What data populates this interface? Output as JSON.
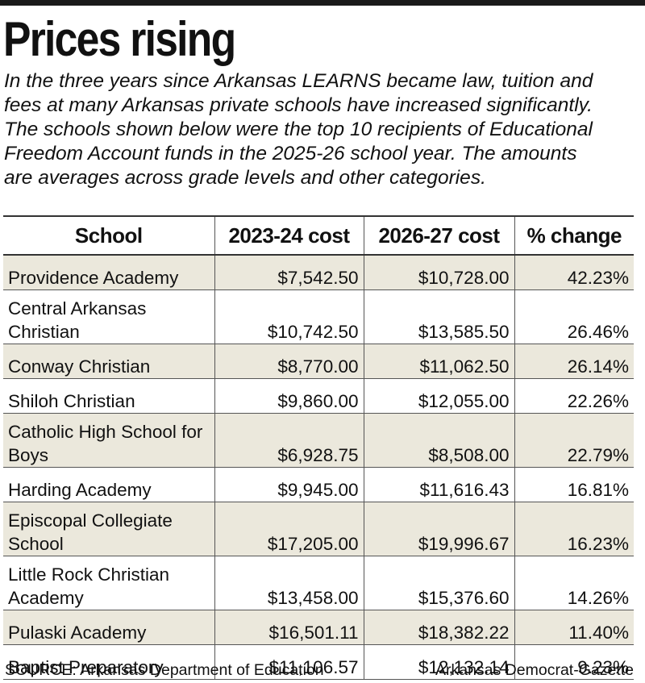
{
  "title": "Prices rising",
  "intro_lines": [
    "In the three years since Arkansas LEARNS became law, tuition and",
    "fees at many Arkansas private schools have increased significantly.",
    "The schools shown below were the top 10 recipients of Educational",
    "Freedom Account funds in the 2025-26 school year. The amounts",
    "are averages across grade levels and other categories."
  ],
  "chart_data": {
    "type": "table",
    "columns": [
      "School",
      "2023-24 cost",
      "2026-27 cost",
      "% change"
    ],
    "rows": [
      {
        "school": "Providence Academy",
        "cost_2023_24": "$7,542.50",
        "cost_2026_27": "$10,728.00",
        "pct_change": "42.23%"
      },
      {
        "school": "Central Arkansas Christian",
        "cost_2023_24": "$10,742.50",
        "cost_2026_27": "$13,585.50",
        "pct_change": "26.46%"
      },
      {
        "school": "Conway Christian",
        "cost_2023_24": "$8,770.00",
        "cost_2026_27": "$11,062.50",
        "pct_change": "26.14%"
      },
      {
        "school": "Shiloh Christian",
        "cost_2023_24": "$9,860.00",
        "cost_2026_27": "$12,055.00",
        "pct_change": "22.26%"
      },
      {
        "school": "Catholic High School for Boys",
        "cost_2023_24": "$6,928.75",
        "cost_2026_27": "$8,508.00",
        "pct_change": "22.79%"
      },
      {
        "school": "Harding Academy",
        "cost_2023_24": "$9,945.00",
        "cost_2026_27": "$11,616.43",
        "pct_change": "16.81%"
      },
      {
        "school": "Episcopal Collegiate School",
        "cost_2023_24": "$17,205.00",
        "cost_2026_27": "$19,996.67",
        "pct_change": "16.23%"
      },
      {
        "school": "Little Rock Christian Academy",
        "cost_2023_24": "$13,458.00",
        "cost_2026_27": "$15,376.60",
        "pct_change": "14.26%"
      },
      {
        "school": "Pulaski Academy",
        "cost_2023_24": "$16,501.11",
        "cost_2026_27": "$18,382.22",
        "pct_change": "11.40%"
      },
      {
        "school": "Baptist Preparatory",
        "cost_2023_24": "$11,106.57",
        "cost_2026_27": "$12,132.14",
        "pct_change": "9.23%"
      }
    ]
  },
  "footer": {
    "source": "SOURCE: Arkansas Department of Education",
    "credit": "Arkansas Democrat-Gazette"
  },
  "colors": {
    "shade": "#ebe8dc",
    "rule": "#1a1a1a"
  }
}
